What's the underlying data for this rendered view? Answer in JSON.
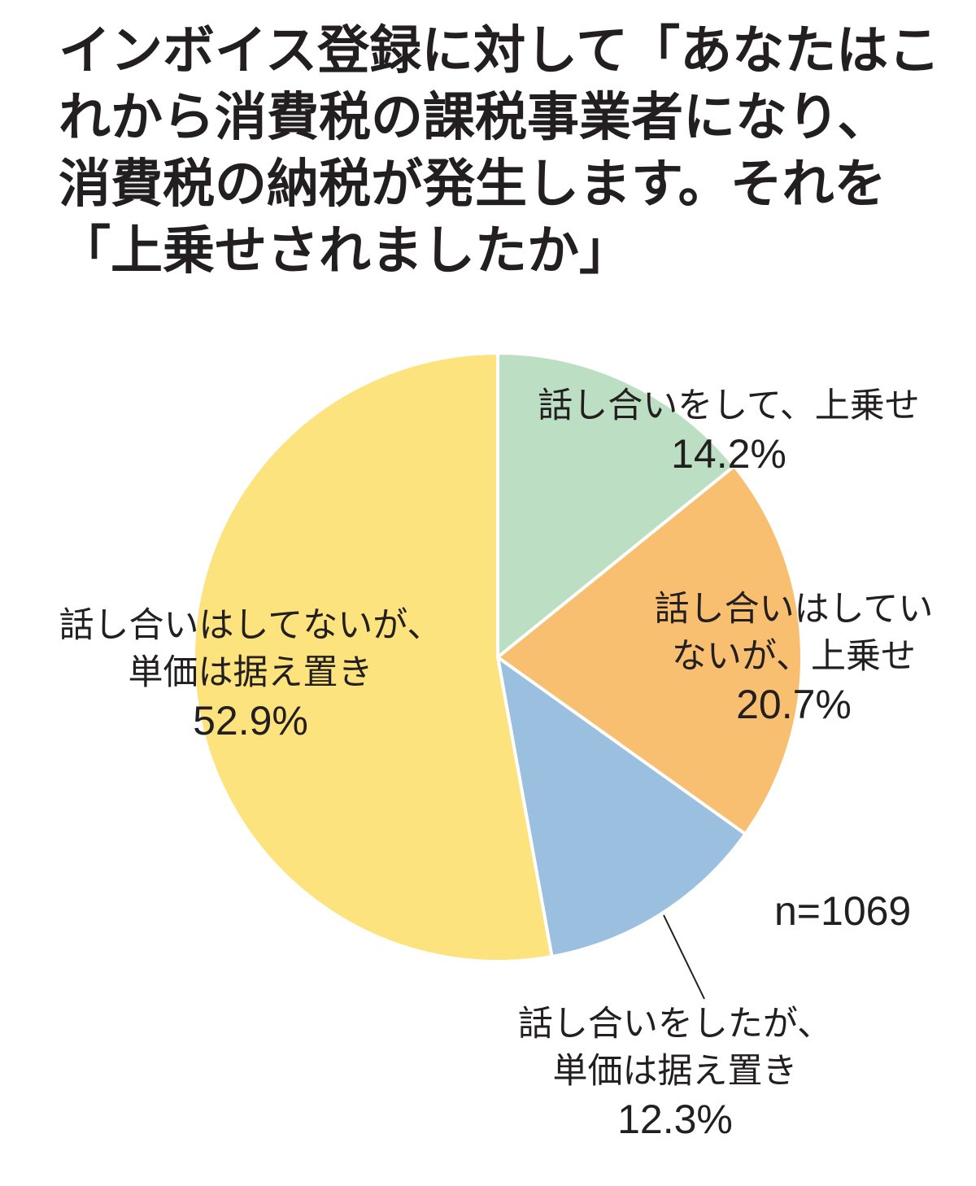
{
  "chart_data": {
    "type": "pie",
    "title_lines": [
      "インボイス登録に対して「あなたはこ",
      "れから消費税の課税事業者になり、",
      "消費税の納税が発生します。それを",
      "「上乗せされましたか」"
    ],
    "sample_size": "n=1069",
    "start": "12 o'clock",
    "direction": "clockwise",
    "slices": [
      {
        "label_lines": [
          "話し合いをして、上乗せ"
        ],
        "value": 14.2,
        "value_label": "14.2%",
        "color": "#bcdfc3"
      },
      {
        "label_lines": [
          "話し合いはしてい",
          "ないが、上乗せ"
        ],
        "value": 20.7,
        "value_label": "20.7%",
        "color": "#f8bf71"
      },
      {
        "label_lines": [
          "話し合いをしたが、",
          "単価は据え置き"
        ],
        "value": 12.3,
        "value_label": "12.3%",
        "color": "#9abfdf"
      },
      {
        "label_lines": [
          "話し合いはしてないが、",
          "単価は据え置き"
        ],
        "value": 52.9,
        "value_label": "52.9%",
        "color": "#fce37e"
      }
    ]
  }
}
